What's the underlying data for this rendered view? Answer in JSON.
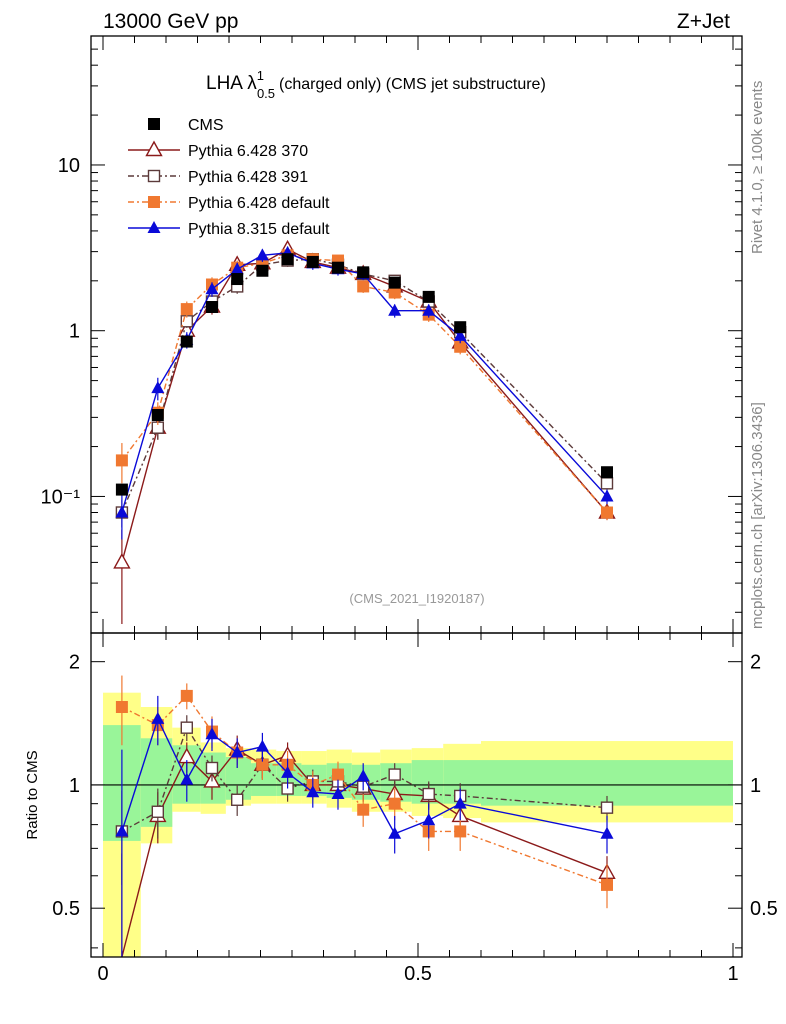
{
  "header": {
    "energy": "13000 GeV pp",
    "process": "Z+Jet"
  },
  "side_labels": {
    "rivet": "Rivet 4.1.0, ≥ 100k events",
    "source": "mcplots.cern.ch [arXiv:1306.3436]"
  },
  "chart_data": {
    "type": "line",
    "title_main": "LHA λ",
    "title_sup": "1",
    "title_sub": "0.5",
    "title_rest": "(charged only) (CMS jet substructure)",
    "analysis_tag": "(CMS_2021_I1920187)",
    "xlabel": "",
    "ylabel_ratio": "Ratio to CMS",
    "xlim": [
      0,
      1
    ],
    "ylim_main": [
      0.015,
      60
    ],
    "ylim_ratio": [
      0.38,
      2.35
    ],
    "yscale": "log",
    "x_ticks": [
      "0",
      "0.5",
      "1"
    ],
    "main_y_ticks": [
      "10⁻¹",
      "1",
      "10"
    ],
    "ratio_y_ticks": [
      "0.5",
      "1",
      "2"
    ],
    "legend_position": "top-left",
    "x": [
      0.03,
      0.087,
      0.133,
      0.173,
      0.213,
      0.253,
      0.293,
      0.333,
      0.373,
      0.413,
      0.463,
      0.517,
      0.567,
      0.8
    ],
    "bands": [
      {
        "x0": 0.0,
        "x1": 0.06,
        "y_lo": 0.33,
        "y_hi": 1.68,
        "g_lo": 0.73,
        "g_hi": 1.4
      },
      {
        "x0": 0.06,
        "x1": 0.11,
        "y_lo": 0.72,
        "y_hi": 1.55,
        "g_lo": 0.79,
        "g_hi": 1.3
      },
      {
        "x0": 0.11,
        "x1": 0.155,
        "y_lo": 0.86,
        "y_hi": 1.38,
        "g_lo": 0.9,
        "g_hi": 1.25
      },
      {
        "x0": 0.155,
        "x1": 0.195,
        "y_lo": 0.85,
        "y_hi": 1.27,
        "g_lo": 0.9,
        "g_hi": 1.2
      },
      {
        "x0": 0.195,
        "x1": 0.235,
        "y_lo": 0.89,
        "y_hi": 1.23,
        "g_lo": 0.92,
        "g_hi": 1.17
      },
      {
        "x0": 0.235,
        "x1": 0.275,
        "y_lo": 0.9,
        "y_hi": 1.22,
        "g_lo": 0.94,
        "g_hi": 1.13
      },
      {
        "x0": 0.275,
        "x1": 0.315,
        "y_lo": 0.9,
        "y_hi": 1.21,
        "g_lo": 0.94,
        "g_hi": 1.13
      },
      {
        "x0": 0.315,
        "x1": 0.355,
        "y_lo": 0.9,
        "y_hi": 1.21,
        "g_lo": 0.94,
        "g_hi": 1.12
      },
      {
        "x0": 0.355,
        "x1": 0.395,
        "y_lo": 0.88,
        "y_hi": 1.22,
        "g_lo": 0.93,
        "g_hi": 1.13
      },
      {
        "x0": 0.395,
        "x1": 0.44,
        "y_lo": 0.86,
        "y_hi": 1.2,
        "g_lo": 0.92,
        "g_hi": 1.12
      },
      {
        "x0": 0.44,
        "x1": 0.49,
        "y_lo": 0.86,
        "y_hi": 1.22,
        "g_lo": 0.91,
        "g_hi": 1.13
      },
      {
        "x0": 0.49,
        "x1": 0.54,
        "y_lo": 0.84,
        "y_hi": 1.23,
        "g_lo": 0.9,
        "g_hi": 1.15
      },
      {
        "x0": 0.54,
        "x1": 0.6,
        "y_lo": 0.83,
        "y_hi": 1.26,
        "g_lo": 0.9,
        "g_hi": 1.15
      },
      {
        "x0": 0.6,
        "x1": 1.0,
        "y_lo": 0.81,
        "y_hi": 1.28,
        "g_lo": 0.89,
        "g_hi": 1.15
      }
    ],
    "series": [
      {
        "name": "CMS",
        "style": "data",
        "color": "#000000",
        "marker": "square",
        "dash": "none",
        "values": [
          0.11,
          0.31,
          0.86,
          1.39,
          2.05,
          2.3,
          2.7,
          2.6,
          2.4,
          2.25,
          1.95,
          1.6,
          1.05,
          0.14
        ],
        "errors": [
          0.003,
          0.01,
          0.02,
          0.03,
          0.04,
          0.05,
          0.05,
          0.05,
          0.05,
          0.05,
          0.04,
          0.04,
          0.03,
          0.005
        ]
      },
      {
        "name": "Pythia 6.428 370",
        "style": "mc",
        "color": "#8b1a1a",
        "marker": "triangle-open",
        "dash": "none",
        "values": [
          0.04,
          0.26,
          1.0,
          1.4,
          2.5,
          2.55,
          3.1,
          2.6,
          2.4,
          2.2,
          1.85,
          1.5,
          0.85,
          0.08
        ],
        "errors": [
          0.023,
          0.04,
          0.1,
          0.15,
          0.25,
          0.22,
          0.25,
          0.2,
          0.18,
          0.17,
          0.15,
          0.12,
          0.08,
          0.008
        ],
        "ratio": [
          0.38,
          0.84,
          1.17,
          1.02,
          1.22,
          1.12,
          1.18,
          1.0,
          1.0,
          0.98,
          0.95,
          0.94,
          0.84,
          0.61
        ],
        "ratio_err": [
          0.3,
          0.12,
          0.1,
          0.1,
          0.1,
          0.09,
          0.09,
          0.07,
          0.07,
          0.07,
          0.07,
          0.07,
          0.07,
          0.06
        ]
      },
      {
        "name": "Pythia 6.428 391",
        "style": "mc",
        "color": "#5c3a3a",
        "marker": "square-open",
        "dash": "6,3,2,3",
        "values": [
          0.08,
          0.26,
          1.14,
          1.5,
          1.85,
          2.5,
          2.65,
          2.7,
          2.5,
          2.2,
          2.0,
          1.5,
          0.98,
          0.12
        ],
        "errors": [
          0.015,
          0.04,
          0.1,
          0.15,
          0.18,
          0.2,
          0.22,
          0.2,
          0.18,
          0.16,
          0.15,
          0.12,
          0.08,
          0.01
        ],
        "ratio": [
          0.77,
          0.86,
          1.38,
          1.1,
          0.92,
          1.12,
          0.98,
          1.02,
          1.02,
          0.99,
          1.06,
          0.95,
          0.94,
          0.88
        ],
        "ratio_err": [
          0.2,
          0.12,
          0.1,
          0.08,
          0.08,
          0.08,
          0.07,
          0.07,
          0.07,
          0.07,
          0.07,
          0.07,
          0.07,
          0.06
        ]
      },
      {
        "name": "Pythia 6.428 default",
        "style": "mc",
        "color": "#f07830",
        "marker": "square",
        "dash": "6,3,2,3",
        "values": [
          0.165,
          0.32,
          1.35,
          1.9,
          2.4,
          2.55,
          2.85,
          2.7,
          2.65,
          1.85,
          1.7,
          1.25,
          0.8,
          0.08
        ],
        "errors": [
          0.045,
          0.05,
          0.15,
          0.2,
          0.25,
          0.22,
          0.25,
          0.2,
          0.2,
          0.16,
          0.15,
          0.12,
          0.08,
          0.008
        ],
        "ratio": [
          1.55,
          1.4,
          1.65,
          1.35,
          1.2,
          1.12,
          1.12,
          1.0,
          1.06,
          0.87,
          0.9,
          0.77,
          0.77,
          0.57
        ],
        "ratio_err": [
          0.3,
          0.15,
          0.12,
          0.12,
          0.1,
          0.09,
          0.09,
          0.08,
          0.08,
          0.08,
          0.08,
          0.08,
          0.08,
          0.07
        ]
      },
      {
        "name": "Pythia 8.315 default",
        "style": "mc",
        "color": "#0a0ad8",
        "marker": "triangle",
        "dash": "none",
        "values": [
          0.08,
          0.45,
          0.88,
          1.78,
          2.35,
          2.85,
          2.95,
          2.55,
          2.35,
          2.2,
          1.32,
          1.32,
          0.93,
          0.1
        ],
        "errors": [
          0.025,
          0.07,
          0.1,
          0.18,
          0.22,
          0.25,
          0.26,
          0.22,
          0.2,
          0.18,
          0.12,
          0.12,
          0.09,
          0.01
        ],
        "ratio": [
          0.77,
          1.45,
          1.03,
          1.33,
          1.2,
          1.24,
          1.07,
          0.96,
          0.95,
          1.05,
          0.76,
          0.82,
          0.9,
          0.76
        ],
        "ratio_err": [
          0.45,
          0.2,
          0.12,
          0.12,
          0.1,
          0.1,
          0.09,
          0.08,
          0.08,
          0.08,
          0.08,
          0.08,
          0.08,
          0.08
        ]
      }
    ]
  }
}
